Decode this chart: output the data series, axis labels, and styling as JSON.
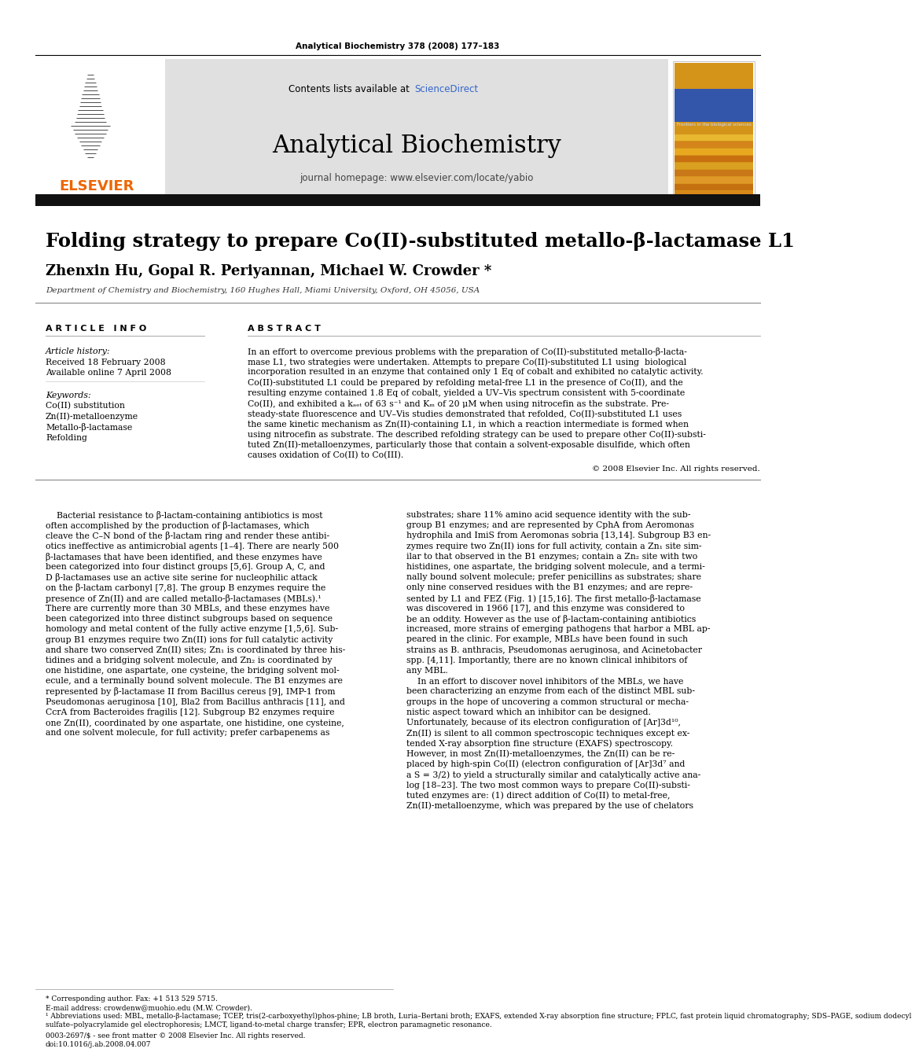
{
  "page_title": "Analytical Biochemistry 378 (2008) 177–183",
  "journal_name": "Analytical Biochemistry",
  "journal_homepage": "journal homepage: www.elsevier.com/locate/yabio",
  "contents_text": "Contents lists available at ",
  "sciencedirect_text": "ScienceDirect",
  "article_title": "Folding strategy to prepare Co(II)-substituted metallo-β-lactamase L1",
  "authors": "Zhenxin Hu, Gopal R. Periyannan, Michael W. Crowder",
  "affiliation": "Department of Chemistry and Biochemistry, 160 Hughes Hall, Miami University, Oxford, OH 45056, USA",
  "article_history_label": "Article history:",
  "received": "Received 18 February 2008",
  "available": "Available online 7 April 2008",
  "keywords_label": "Keywords:",
  "keywords": [
    "Co(II) substitution",
    "Zn(II)-metalloenzyme",
    "Metallo-β-lactamase",
    "Refolding"
  ],
  "copyright": "© 2008 Elsevier Inc. All rights reserved.",
  "bg_color": "#ffffff",
  "header_bar_color": "#111111",
  "elsevier_color": "#ee6600",
  "sciencedirect_link_color": "#3366cc",
  "header_bg_color": "#e0e0e0",
  "abstract_lines": [
    "In an effort to overcome previous problems with the preparation of Co(II)-substituted metallo-β-lacta-",
    "mase L1, two strategies were undertaken. Attempts to prepare Co(II)-substituted L1 using  biological",
    "incorporation resulted in an enzyme that contained only 1 Eq of cobalt and exhibited no catalytic activity.",
    "Co(II)-substituted L1 could be prepared by refolding metal-free L1 in the presence of Co(II), and the",
    "resulting enzyme contained 1.8 Eq of cobalt, yielded a UV–Vis spectrum consistent with 5-coordinate",
    "Co(II), and exhibited a kₐₑₜ of 63 s⁻¹ and Kₘ of 20 μM when using nitrocefin as the substrate. Pre-",
    "steady-state fluorescence and UV–Vis studies demonstrated that refolded, Co(II)-substituted L1 uses",
    "the same kinetic mechanism as Zn(II)-containing L1, in which a reaction intermediate is formed when",
    "using nitrocefin as substrate. The described refolding strategy can be used to prepare other Co(II)-substi-",
    "tuted Zn(II)-metalloenzymes, particularly those that contain a solvent-exposable disulfide, which often",
    "causes oxidation of Co(II) to Co(III)."
  ],
  "col1_lines": [
    "    Bacterial resistance to β-lactam-containing antibiotics is most",
    "often accomplished by the production of β-lactamases, which",
    "cleave the C–N bond of the β-lactam ring and render these antibi-",
    "otics ineffective as antimicrobial agents [1–4]. There are nearly 500",
    "β-lactamases that have been identified, and these enzymes have",
    "been categorized into four distinct groups [5,6]. Group A, C, and",
    "D β-lactamases use an active site serine for nucleophilic attack",
    "on the β-lactam carbonyl [7,8]. The group B enzymes require the",
    "presence of Zn(II) and are called metallo-β-lactamases (MBLs).¹",
    "There are currently more than 30 MBLs, and these enzymes have",
    "been categorized into three distinct subgroups based on sequence",
    "homology and metal content of the fully active enzyme [1,5,6]. Sub-",
    "group B1 enzymes require two Zn(II) ions for full catalytic activity",
    "and share two conserved Zn(II) sites; Zn₁ is coordinated by three his-",
    "tidines and a bridging solvent molecule, and Zn₂ is coordinated by",
    "one histidine, one aspartate, one cysteine, the bridging solvent mol-",
    "ecule, and a terminally bound solvent molecule. The B1 enzymes are",
    "represented by β-lactamase II from Bacillus cereus [9], IMP-1 from",
    "Pseudomonas aeruginosa [10], Bla2 from Bacillus anthracis [11], and",
    "CcrA from Bacteroides fragilis [12]. Subgroup B2 enzymes require",
    "one Zn(II), coordinated by one aspartate, one histidine, one cysteine,",
    "and one solvent molecule, for full activity; prefer carbapenems as"
  ],
  "col2_lines": [
    "substrates; share 11% amino acid sequence identity with the sub-",
    "group B1 enzymes; and are represented by CphA from Aeromonas",
    "hydrophila and ImiS from Aeromonas sobria [13,14]. Subgroup B3 en-",
    "zymes require two Zn(II) ions for full activity, contain a Zn₁ site sim-",
    "ilar to that observed in the B1 enzymes; contain a Zn₂ site with two",
    "histidines, one aspartate, the bridging solvent molecule, and a termi-",
    "nally bound solvent molecule; prefer penicillins as substrates; share",
    "only nine conserved residues with the B1 enzymes; and are repre-",
    "sented by L1 and FEZ (Fig. 1) [15,16]. The first metallo-β-lactamase",
    "was discovered in 1966 [17], and this enzyme was considered to",
    "be an oddity. However as the use of β-lactam-containing antibiotics",
    "increased, more strains of emerging pathogens that harbor a MBL ap-",
    "peared in the clinic. For example, MBLs have been found in such",
    "strains as B. anthracis, Pseudomonas aeruginosa, and Acinetobacter",
    "spp. [4,11]. Importantly, there are no known clinical inhibitors of",
    "any MBL.",
    "    In an effort to discover novel inhibitors of the MBLs, we have",
    "been characterizing an enzyme from each of the distinct MBL sub-",
    "groups in the hope of uncovering a common structural or mecha-",
    "nistic aspect toward which an inhibitor can be designed.",
    "Unfortunately, because of its electron configuration of [Ar]3d¹⁰,",
    "Zn(II) is silent to all common spectroscopic techniques except ex-",
    "tended X-ray absorption fine structure (EXAFS) spectroscopy.",
    "However, in most Zn(II)-metalloenzymes, the Zn(II) can be re-",
    "placed by high-spin Co(II) (electron configuration of [Ar]3d⁷ and",
    "a S = 3/2) to yield a structurally similar and catalytically active ana-",
    "log [18–23]. The two most common ways to prepare Co(II)-substi-",
    "tuted enzymes are: (1) direct addition of Co(II) to metal-free,",
    "Zn(II)-metalloenzyme, which was prepared by the use of chelators"
  ],
  "footer_lines": [
    "* Corresponding author. Fax: +1 513 529 5715.",
    "E-mail address: crowdenw@muohio.edu (M.W. Crowder).",
    "¹ Abbreviations used: MBL, metallo-β-lactamase; TCEP, tris(2-carboxyethyl)phos-phine; LB broth, Luria–Bertani broth; EXAFS, extended X-ray absorption fine structure; FPLC, fast protein liquid chromatography; SDS–PAGE, sodium dodecyl",
    "sulfate–polyacrylamide gel electrophoresis; LMCT, ligand-to-metal charge transfer; EPR, electron paramagnetic resonance.",
    "0003-2697/$ - see front matter © 2008 Elsevier Inc. All rights reserved.",
    "doi:10.1016/j.ab.2008.04.007"
  ]
}
